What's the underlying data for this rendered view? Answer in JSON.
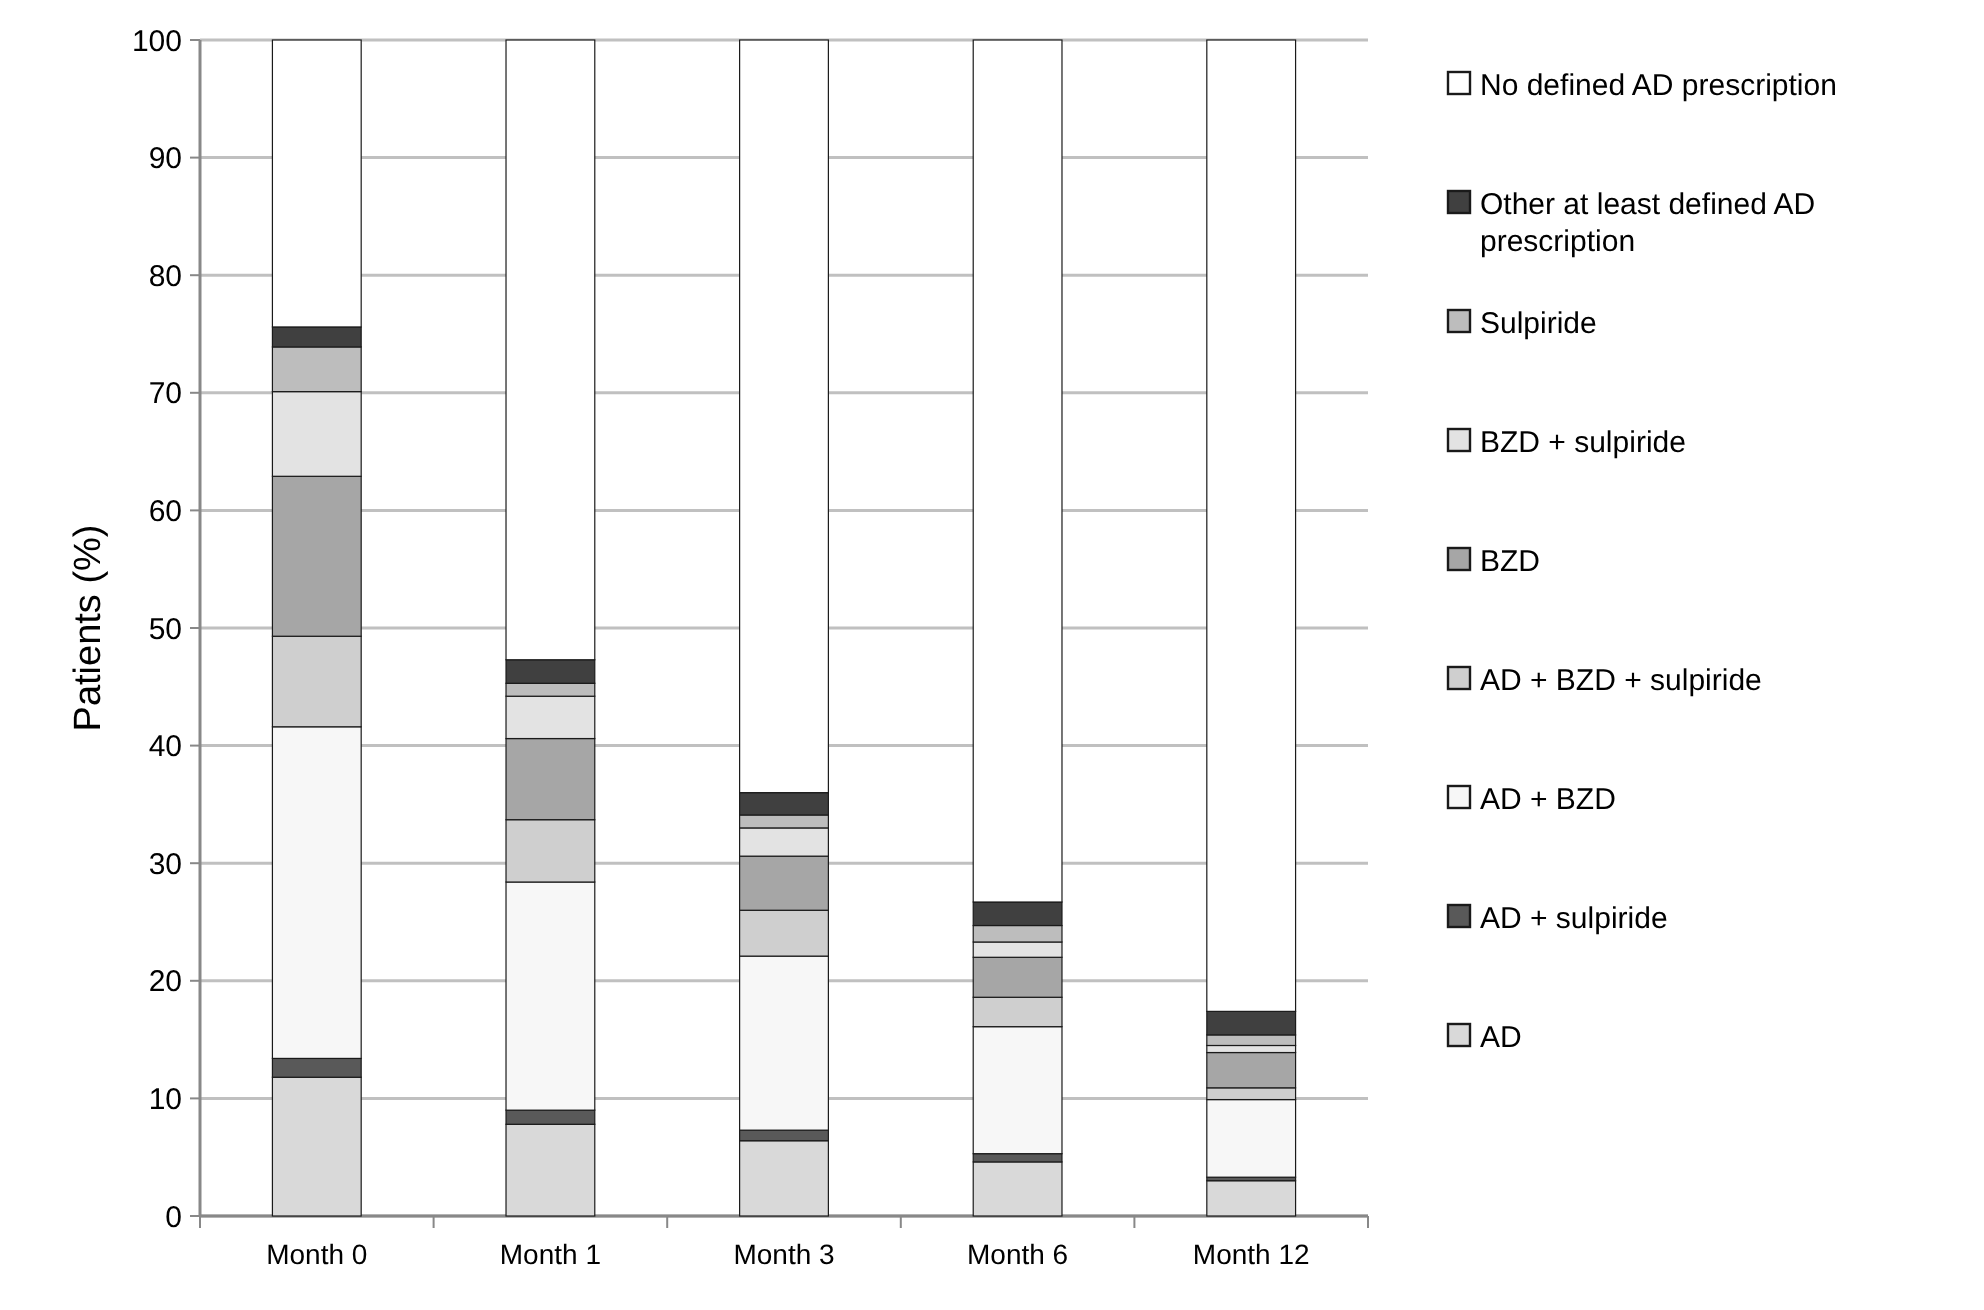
{
  "chart_data": {
    "type": "bar",
    "stacked": true,
    "ylabel": "Patients (%)",
    "categories": [
      "Month 0",
      "Month 1",
      "Month 3",
      "Month 6",
      "Month 12"
    ],
    "ylim": [
      0,
      100
    ],
    "yticks": [
      0,
      10,
      20,
      30,
      40,
      50,
      60,
      70,
      80,
      90,
      100
    ],
    "grid": "y",
    "legend": "right",
    "series": [
      {
        "name": "AD",
        "color": "#d9d9d9",
        "values": [
          11.8,
          7.8,
          6.4,
          4.6,
          3.0
        ]
      },
      {
        "name": "AD + sulpiride",
        "color": "#595959",
        "values": [
          1.6,
          1.2,
          0.9,
          0.7,
          0.3
        ]
      },
      {
        "name": "AD + BZD",
        "color": "#f7f7f7",
        "values": [
          28.2,
          19.4,
          14.8,
          10.8,
          6.6
        ]
      },
      {
        "name": "AD + BZD + sulpiride",
        "color": "#cfcfcf",
        "values": [
          7.7,
          5.3,
          3.9,
          2.5,
          1.0
        ]
      },
      {
        "name": "BZD",
        "color": "#a6a6a6",
        "values": [
          13.6,
          6.9,
          4.6,
          3.4,
          3.0
        ]
      },
      {
        "name": "BZD + sulpiride",
        "color": "#e3e3e3",
        "values": [
          7.2,
          3.6,
          2.4,
          1.3,
          0.6
        ]
      },
      {
        "name": "Sulpiride",
        "color": "#bdbdbd",
        "values": [
          3.8,
          1.1,
          1.1,
          1.4,
          0.9
        ]
      },
      {
        "name": "Other at least defined AD prescription",
        "color": "#404040",
        "values": [
          1.7,
          2.0,
          1.9,
          2.0,
          2.0
        ]
      },
      {
        "name": "No defined AD prescription",
        "color": "#ffffff",
        "values": [
          24.4,
          52.7,
          64.0,
          73.3,
          82.6
        ]
      }
    ]
  }
}
